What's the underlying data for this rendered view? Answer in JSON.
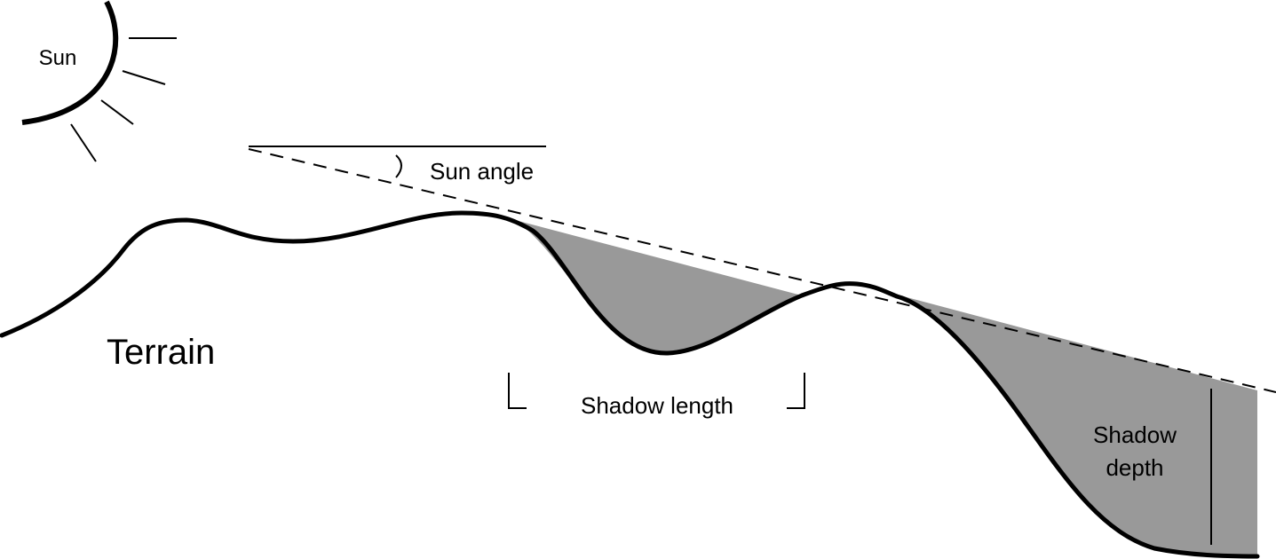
{
  "labels": {
    "sun": "Sun",
    "sun_angle": "Sun angle",
    "terrain": "Terrain",
    "shadow_length": "Shadow length",
    "shadow_depth_line1": "Shadow",
    "shadow_depth_line2": "depth"
  },
  "colors": {
    "stroke": "#000000",
    "shadow_fill": "#999999",
    "background": "#ffffff"
  }
}
